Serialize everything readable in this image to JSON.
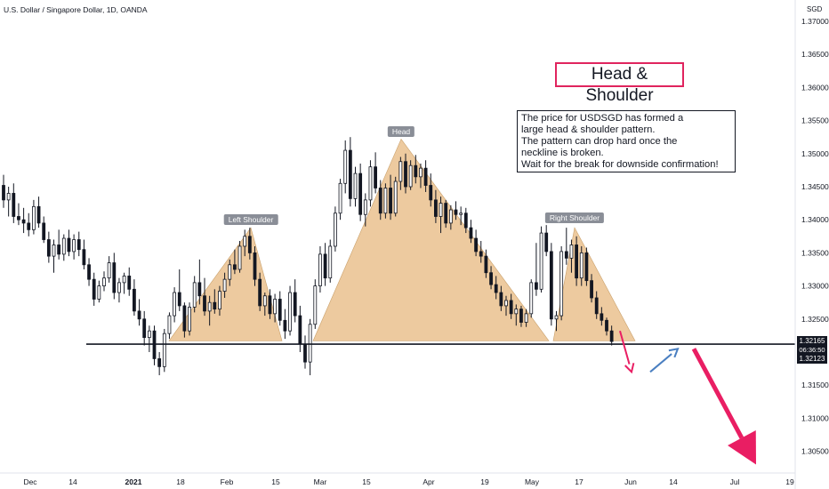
{
  "header": {
    "symbol_title": "U.S. Dollar / Singapore Dollar, 1D, OANDA",
    "currency": "SGD"
  },
  "price_axis": {
    "ticks": [
      "1.37000",
      "1.36500",
      "1.36000",
      "1.35500",
      "1.35000",
      "1.34500",
      "1.34000",
      "1.33500",
      "1.33000",
      "1.32500",
      "1.31500",
      "1.31000",
      "1.30500"
    ],
    "last_price": "1.32165",
    "countdown": "06:36:50",
    "crosshair_price": "1.32123"
  },
  "time_axis": {
    "ticks": [
      {
        "label": "Dec",
        "bold": false
      },
      {
        "label": "14",
        "bold": false
      },
      {
        "label": "2021",
        "bold": true
      },
      {
        "label": "18",
        "bold": false
      },
      {
        "label": "Feb",
        "bold": false
      },
      {
        "label": "15",
        "bold": false
      },
      {
        "label": "Mar",
        "bold": false
      },
      {
        "label": "15",
        "bold": false
      },
      {
        "label": "Apr",
        "bold": false
      },
      {
        "label": "19",
        "bold": false
      },
      {
        "label": "May",
        "bold": false
      },
      {
        "label": "17",
        "bold": false
      },
      {
        "label": "Jun",
        "bold": false
      },
      {
        "label": "14",
        "bold": false
      },
      {
        "label": "Jul",
        "bold": false
      },
      {
        "label": "19",
        "bold": false
      }
    ]
  },
  "annotations": {
    "title": "Head & Shoulder",
    "note_lines": [
      "The price for USDSGD has formed a",
      "large head & shoulder pattern.",
      "The pattern can drop hard once the",
      "neckline is broken.",
      "Wait for the break for downside confirmation!"
    ],
    "left_shoulder": "Left Shoulder",
    "head": "Head",
    "right_shoulder": "Right Shoulder"
  },
  "chart_data": {
    "type": "candlestick",
    "symbol": "USDSGD",
    "timeframe": "1D",
    "source": "OANDA",
    "ylim": [
      1.3025,
      1.3725
    ],
    "neckline": 1.3212,
    "pattern": [
      {
        "name": "Left Shoulder",
        "start": [
          1.3217,
          1.3217
        ],
        "peak": 1.3388
      },
      {
        "name": "Head",
        "peak": 1.3522
      },
      {
        "name": "Right Shoulder",
        "peak": 1.3388
      }
    ],
    "candles": [
      {
        "o": 1.3452,
        "h": 1.3468,
        "l": 1.3418,
        "c": 1.343
      },
      {
        "o": 1.343,
        "h": 1.345,
        "l": 1.3405,
        "c": 1.344
      },
      {
        "o": 1.344,
        "h": 1.3455,
        "l": 1.3395,
        "c": 1.3405
      },
      {
        "o": 1.3405,
        "h": 1.3425,
        "l": 1.3392,
        "c": 1.34
      },
      {
        "o": 1.34,
        "h": 1.3418,
        "l": 1.338,
        "c": 1.3395
      },
      {
        "o": 1.3395,
        "h": 1.341,
        "l": 1.3375,
        "c": 1.3385
      },
      {
        "o": 1.3385,
        "h": 1.343,
        "l": 1.3378,
        "c": 1.342
      },
      {
        "o": 1.342,
        "h": 1.3435,
        "l": 1.3388,
        "c": 1.3395
      },
      {
        "o": 1.3395,
        "h": 1.3405,
        "l": 1.3365,
        "c": 1.337
      },
      {
        "o": 1.337,
        "h": 1.3382,
        "l": 1.3335,
        "c": 1.3345
      },
      {
        "o": 1.3345,
        "h": 1.337,
        "l": 1.332,
        "c": 1.3362
      },
      {
        "o": 1.3362,
        "h": 1.3385,
        "l": 1.334,
        "c": 1.3348
      },
      {
        "o": 1.3348,
        "h": 1.3378,
        "l": 1.3338,
        "c": 1.3372
      },
      {
        "o": 1.3372,
        "h": 1.3385,
        "l": 1.3345,
        "c": 1.3352
      },
      {
        "o": 1.3352,
        "h": 1.3378,
        "l": 1.334,
        "c": 1.337
      },
      {
        "o": 1.337,
        "h": 1.3382,
        "l": 1.3345,
        "c": 1.3355
      },
      {
        "o": 1.3355,
        "h": 1.337,
        "l": 1.3325,
        "c": 1.3332
      },
      {
        "o": 1.3332,
        "h": 1.3342,
        "l": 1.33,
        "c": 1.331
      },
      {
        "o": 1.331,
        "h": 1.332,
        "l": 1.327,
        "c": 1.328
      },
      {
        "o": 1.328,
        "h": 1.3308,
        "l": 1.3275,
        "c": 1.33
      },
      {
        "o": 1.33,
        "h": 1.3322,
        "l": 1.3292,
        "c": 1.3312
      },
      {
        "o": 1.3312,
        "h": 1.3345,
        "l": 1.3305,
        "c": 1.3335
      },
      {
        "o": 1.3335,
        "h": 1.335,
        "l": 1.328,
        "c": 1.329
      },
      {
        "o": 1.329,
        "h": 1.3312,
        "l": 1.3275,
        "c": 1.3305
      },
      {
        "o": 1.3305,
        "h": 1.332,
        "l": 1.3288,
        "c": 1.3315
      },
      {
        "o": 1.3315,
        "h": 1.3328,
        "l": 1.3285,
        "c": 1.3295
      },
      {
        "o": 1.3295,
        "h": 1.331,
        "l": 1.3255,
        "c": 1.3262
      },
      {
        "o": 1.3262,
        "h": 1.328,
        "l": 1.324,
        "c": 1.325
      },
      {
        "o": 1.325,
        "h": 1.3262,
        "l": 1.321,
        "c": 1.3222
      },
      {
        "o": 1.3222,
        "h": 1.324,
        "l": 1.32,
        "c": 1.3232
      },
      {
        "o": 1.3232,
        "h": 1.324,
        "l": 1.318,
        "c": 1.319
      },
      {
        "o": 1.319,
        "h": 1.32,
        "l": 1.3165,
        "c": 1.3178
      },
      {
        "o": 1.3178,
        "h": 1.3235,
        "l": 1.317,
        "c": 1.3228
      },
      {
        "o": 1.3228,
        "h": 1.326,
        "l": 1.322,
        "c": 1.3255
      },
      {
        "o": 1.3255,
        "h": 1.3298,
        "l": 1.3245,
        "c": 1.329
      },
      {
        "o": 1.329,
        "h": 1.3325,
        "l": 1.3262,
        "c": 1.327
      },
      {
        "o": 1.327,
        "h": 1.3275,
        "l": 1.3222,
        "c": 1.3232
      },
      {
        "o": 1.3232,
        "h": 1.3275,
        "l": 1.3225,
        "c": 1.3268
      },
      {
        "o": 1.3268,
        "h": 1.3315,
        "l": 1.326,
        "c": 1.3305
      },
      {
        "o": 1.3305,
        "h": 1.334,
        "l": 1.3272,
        "c": 1.3285
      },
      {
        "o": 1.3285,
        "h": 1.3312,
        "l": 1.3255,
        "c": 1.3262
      },
      {
        "o": 1.3262,
        "h": 1.3285,
        "l": 1.324,
        "c": 1.3275
      },
      {
        "o": 1.3275,
        "h": 1.3295,
        "l": 1.3258,
        "c": 1.3265
      },
      {
        "o": 1.3265,
        "h": 1.33,
        "l": 1.3255,
        "c": 1.3292
      },
      {
        "o": 1.3292,
        "h": 1.332,
        "l": 1.3282,
        "c": 1.331
      },
      {
        "o": 1.331,
        "h": 1.334,
        "l": 1.33,
        "c": 1.3332
      },
      {
        "o": 1.3332,
        "h": 1.3355,
        "l": 1.3318,
        "c": 1.3325
      },
      {
        "o": 1.3325,
        "h": 1.3368,
        "l": 1.332,
        "c": 1.336
      },
      {
        "o": 1.336,
        "h": 1.3385,
        "l": 1.3345,
        "c": 1.3375
      },
      {
        "o": 1.3375,
        "h": 1.3388,
        "l": 1.334,
        "c": 1.335
      },
      {
        "o": 1.335,
        "h": 1.336,
        "l": 1.33,
        "c": 1.331
      },
      {
        "o": 1.331,
        "h": 1.332,
        "l": 1.3262,
        "c": 1.327
      },
      {
        "o": 1.327,
        "h": 1.329,
        "l": 1.3255,
        "c": 1.3285
      },
      {
        "o": 1.3285,
        "h": 1.3295,
        "l": 1.325,
        "c": 1.3258
      },
      {
        "o": 1.3258,
        "h": 1.3288,
        "l": 1.3245,
        "c": 1.328
      },
      {
        "o": 1.328,
        "h": 1.3292,
        "l": 1.324,
        "c": 1.3248
      },
      {
        "o": 1.3248,
        "h": 1.3265,
        "l": 1.322,
        "c": 1.3232
      },
      {
        "o": 1.3232,
        "h": 1.33,
        "l": 1.3225,
        "c": 1.329
      },
      {
        "o": 1.329,
        "h": 1.331,
        "l": 1.3245,
        "c": 1.3255
      },
      {
        "o": 1.3255,
        "h": 1.327,
        "l": 1.32,
        "c": 1.3212
      },
      {
        "o": 1.3212,
        "h": 1.3225,
        "l": 1.3175,
        "c": 1.3185
      },
      {
        "o": 1.3185,
        "h": 1.325,
        "l": 1.3165,
        "c": 1.3242
      },
      {
        "o": 1.3242,
        "h": 1.331,
        "l": 1.3235,
        "c": 1.33
      },
      {
        "o": 1.33,
        "h": 1.336,
        "l": 1.329,
        "c": 1.3348
      },
      {
        "o": 1.3348,
        "h": 1.3365,
        "l": 1.33,
        "c": 1.3312
      },
      {
        "o": 1.3312,
        "h": 1.337,
        "l": 1.3305,
        "c": 1.336
      },
      {
        "o": 1.336,
        "h": 1.342,
        "l": 1.3352,
        "c": 1.341
      },
      {
        "o": 1.341,
        "h": 1.3462,
        "l": 1.34,
        "c": 1.3455
      },
      {
        "o": 1.3455,
        "h": 1.352,
        "l": 1.344,
        "c": 1.3505
      },
      {
        "o": 1.3505,
        "h": 1.3525,
        "l": 1.342,
        "c": 1.3432
      },
      {
        "o": 1.3432,
        "h": 1.348,
        "l": 1.342,
        "c": 1.347
      },
      {
        "o": 1.347,
        "h": 1.3485,
        "l": 1.3398,
        "c": 1.3408
      },
      {
        "o": 1.3408,
        "h": 1.344,
        "l": 1.339,
        "c": 1.343
      },
      {
        "o": 1.343,
        "h": 1.349,
        "l": 1.342,
        "c": 1.348
      },
      {
        "o": 1.348,
        "h": 1.3502,
        "l": 1.344,
        "c": 1.3448
      },
      {
        "o": 1.3448,
        "h": 1.346,
        "l": 1.34,
        "c": 1.341
      },
      {
        "o": 1.341,
        "h": 1.3455,
        "l": 1.3402,
        "c": 1.3448
      },
      {
        "o": 1.3448,
        "h": 1.3468,
        "l": 1.34,
        "c": 1.341
      },
      {
        "o": 1.341,
        "h": 1.3465,
        "l": 1.3405,
        "c": 1.3458
      },
      {
        "o": 1.3458,
        "h": 1.3495,
        "l": 1.3445,
        "c": 1.3488
      },
      {
        "o": 1.3488,
        "h": 1.35,
        "l": 1.344,
        "c": 1.345
      },
      {
        "o": 1.345,
        "h": 1.349,
        "l": 1.3445,
        "c": 1.3482
      },
      {
        "o": 1.3482,
        "h": 1.3498,
        "l": 1.3455,
        "c": 1.3465
      },
      {
        "o": 1.3465,
        "h": 1.3485,
        "l": 1.3448,
        "c": 1.3478
      },
      {
        "o": 1.3478,
        "h": 1.349,
        "l": 1.3442,
        "c": 1.3452
      },
      {
        "o": 1.3452,
        "h": 1.347,
        "l": 1.342,
        "c": 1.343
      },
      {
        "o": 1.343,
        "h": 1.3445,
        "l": 1.3395,
        "c": 1.3405
      },
      {
        "o": 1.3405,
        "h": 1.3435,
        "l": 1.338,
        "c": 1.3425
      },
      {
        "o": 1.3425,
        "h": 1.343,
        "l": 1.3388,
        "c": 1.3395
      },
      {
        "o": 1.3395,
        "h": 1.3422,
        "l": 1.3385,
        "c": 1.3415
      },
      {
        "o": 1.3415,
        "h": 1.3428,
        "l": 1.34,
        "c": 1.3408
      },
      {
        "o": 1.3408,
        "h": 1.342,
        "l": 1.3392,
        "c": 1.341
      },
      {
        "o": 1.341,
        "h": 1.3418,
        "l": 1.338,
        "c": 1.3388
      },
      {
        "o": 1.3388,
        "h": 1.34,
        "l": 1.3365,
        "c": 1.3372
      },
      {
        "o": 1.3372,
        "h": 1.3385,
        "l": 1.3345,
        "c": 1.3352
      },
      {
        "o": 1.3352,
        "h": 1.3368,
        "l": 1.3335,
        "c": 1.3345
      },
      {
        "o": 1.3345,
        "h": 1.3355,
        "l": 1.3312,
        "c": 1.332
      },
      {
        "o": 1.332,
        "h": 1.333,
        "l": 1.3295,
        "c": 1.3302
      },
      {
        "o": 1.3302,
        "h": 1.3315,
        "l": 1.328,
        "c": 1.329
      },
      {
        "o": 1.329,
        "h": 1.33,
        "l": 1.3262,
        "c": 1.327
      },
      {
        "o": 1.327,
        "h": 1.3285,
        "l": 1.3255,
        "c": 1.3278
      },
      {
        "o": 1.3278,
        "h": 1.3288,
        "l": 1.325,
        "c": 1.3258
      },
      {
        "o": 1.3258,
        "h": 1.3272,
        "l": 1.324,
        "c": 1.3265
      },
      {
        "o": 1.3265,
        "h": 1.327,
        "l": 1.3238,
        "c": 1.3245
      },
      {
        "o": 1.3245,
        "h": 1.3265,
        "l": 1.3238,
        "c": 1.3258
      },
      {
        "o": 1.3258,
        "h": 1.331,
        "l": 1.3252,
        "c": 1.3305
      },
      {
        "o": 1.3305,
        "h": 1.3365,
        "l": 1.3285,
        "c": 1.3295
      },
      {
        "o": 1.3295,
        "h": 1.339,
        "l": 1.329,
        "c": 1.338
      },
      {
        "o": 1.338,
        "h": 1.3392,
        "l": 1.3345,
        "c": 1.3352
      },
      {
        "o": 1.3352,
        "h": 1.3365,
        "l": 1.324,
        "c": 1.325
      },
      {
        "o": 1.325,
        "h": 1.3262,
        "l": 1.3232,
        "c": 1.3255
      },
      {
        "o": 1.3255,
        "h": 1.336,
        "l": 1.3248,
        "c": 1.3352
      },
      {
        "o": 1.3352,
        "h": 1.3388,
        "l": 1.3332,
        "c": 1.3342
      },
      {
        "o": 1.3342,
        "h": 1.337,
        "l": 1.332,
        "c": 1.3362
      },
      {
        "o": 1.3362,
        "h": 1.3375,
        "l": 1.33,
        "c": 1.3312
      },
      {
        "o": 1.3312,
        "h": 1.336,
        "l": 1.33,
        "c": 1.335
      },
      {
        "o": 1.335,
        "h": 1.3358,
        "l": 1.33,
        "c": 1.3308
      },
      {
        "o": 1.3308,
        "h": 1.3318,
        "l": 1.3275,
        "c": 1.3282
      },
      {
        "o": 1.3282,
        "h": 1.3292,
        "l": 1.325,
        "c": 1.3258
      },
      {
        "o": 1.3258,
        "h": 1.3268,
        "l": 1.324,
        "c": 1.3248
      },
      {
        "o": 1.3248,
        "h": 1.3252,
        "l": 1.3225,
        "c": 1.3232
      },
      {
        "o": 1.3232,
        "h": 1.324,
        "l": 1.321,
        "c": 1.3216
      }
    ],
    "projection_arrows": [
      {
        "from": 1.3232,
        "to": 1.317,
        "color": "#e91e63"
      },
      {
        "from": 1.317,
        "to": 1.3205,
        "color": "#4a7fc1"
      },
      {
        "from": 1.3205,
        "to": 1.303,
        "color": "#e91e63"
      }
    ]
  }
}
